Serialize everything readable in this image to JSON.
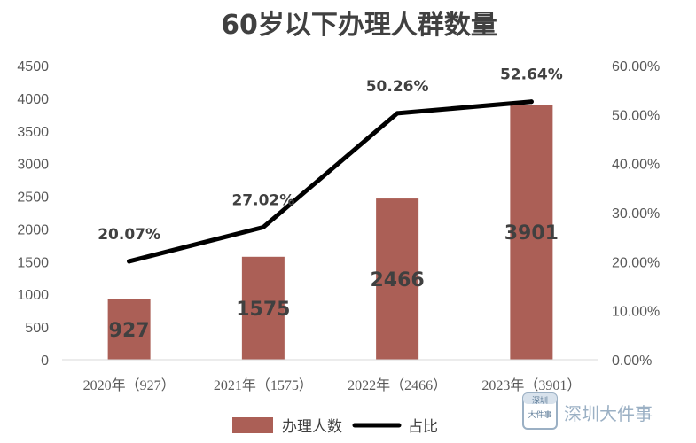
{
  "chart_data": {
    "type": "bar",
    "title": "60岁以下办理人群数量",
    "categories": [
      "2020年（927）",
      "2021年（1575）",
      "2022年（2466）",
      "2023年（3901）"
    ],
    "series": [
      {
        "name": "办理人数",
        "type": "bar",
        "axis": "left",
        "color": "#ab5f56",
        "values": [
          927,
          1575,
          2466,
          3901
        ],
        "labels": [
          "927",
          "1575",
          "2466",
          "3901"
        ]
      },
      {
        "name": "占比",
        "type": "line",
        "axis": "right",
        "color": "#000000",
        "values": [
          20.07,
          27.02,
          50.26,
          52.64
        ],
        "labels": [
          "20.07%",
          "27.02%",
          "50.26%",
          "52.64%"
        ]
      }
    ],
    "y_left": {
      "ylim": [
        0,
        4500
      ],
      "ticks": [
        "0",
        "500",
        "1000",
        "1500",
        "2000",
        "2500",
        "3000",
        "3500",
        "4000",
        "4500"
      ]
    },
    "y_right": {
      "ylim": [
        0,
        60
      ],
      "ticks": [
        "0.00%",
        "10.00%",
        "20.00%",
        "30.00%",
        "40.00%",
        "50.00%",
        "60.00%"
      ]
    },
    "grid": false,
    "legend": "bottom-center"
  },
  "watermark": {
    "logo_text": [
      "深圳",
      "大件事"
    ],
    "text": "深圳大件事",
    "color": "#9bb0c4"
  }
}
